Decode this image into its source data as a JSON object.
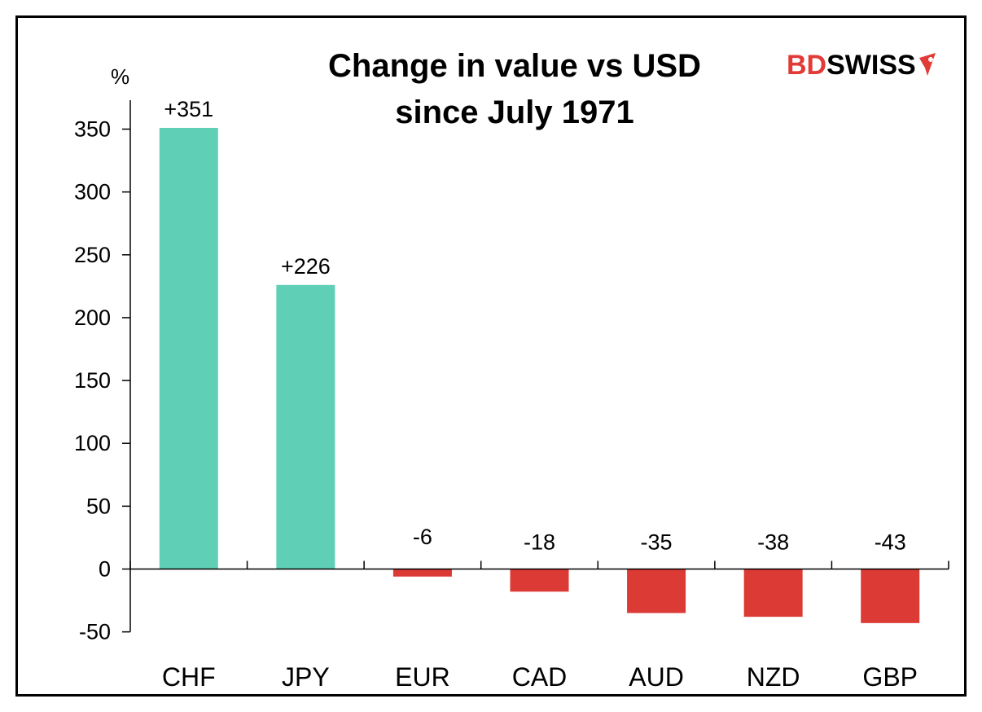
{
  "brand": {
    "part1": "BD",
    "part2": "SWISS",
    "color_primary": "#e23a36",
    "color_secondary": "#000000"
  },
  "chart_data": {
    "type": "bar",
    "title": "Change in value vs USD since July 1971",
    "title_lines": [
      "Change in value vs USD",
      "since July 1971"
    ],
    "ylabel": "%",
    "xlabel": "",
    "categories": [
      "CHF",
      "JPY",
      "EUR",
      "CAD",
      "AUD",
      "NZD",
      "GBP"
    ],
    "values": [
      351,
      226,
      -6,
      -18,
      -35,
      -38,
      -43
    ],
    "data_labels": [
      "+351",
      "+226",
      "-6",
      "-18",
      "-35",
      "-38",
      "-43"
    ],
    "ylim": [
      -50,
      350
    ],
    "yticks": [
      -50,
      0,
      50,
      100,
      150,
      200,
      250,
      300,
      350
    ],
    "grid": false,
    "legend": "none",
    "colors": {
      "positive": "#5fd0b6",
      "negative": "#dc3a34"
    }
  }
}
